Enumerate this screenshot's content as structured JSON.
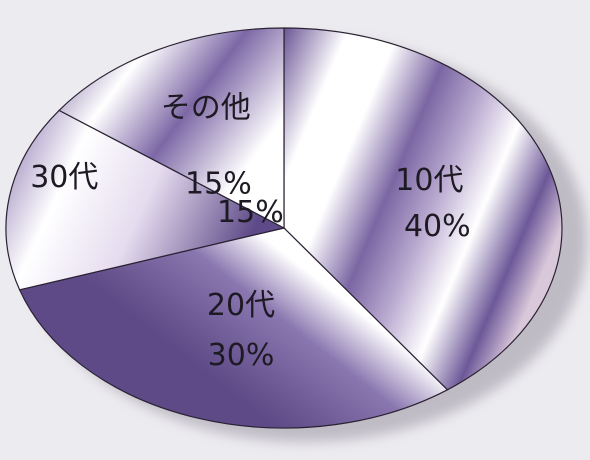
{
  "chart_data": {
    "type": "pie",
    "slices": [
      {
        "name": "10代",
        "value": 40,
        "label": "40%"
      },
      {
        "name": "20代",
        "value": 30,
        "label": "30%"
      },
      {
        "name": "30代",
        "value": 15,
        "label": "15%"
      },
      {
        "name": "その他",
        "value": 15,
        "label": "15%"
      }
    ],
    "colors": {
      "light": "#ffffff",
      "mid": "#b3a3cc",
      "dark": "#6b5596",
      "deep": "#4f3c78",
      "outline": "#2a2233"
    }
  }
}
